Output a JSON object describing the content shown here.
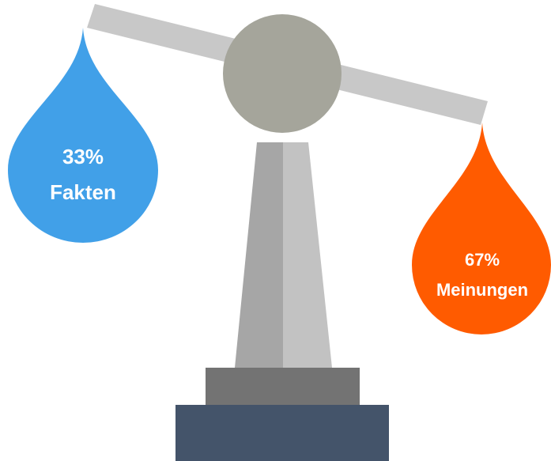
{
  "chart_data": {
    "type": "balance",
    "categories": [
      "Fakten",
      "Meinungen"
    ],
    "values": [
      33,
      67
    ],
    "value_labels": [
      "33%",
      "67%"
    ],
    "colors": [
      "#41a0e8",
      "#ff5b00"
    ]
  }
}
